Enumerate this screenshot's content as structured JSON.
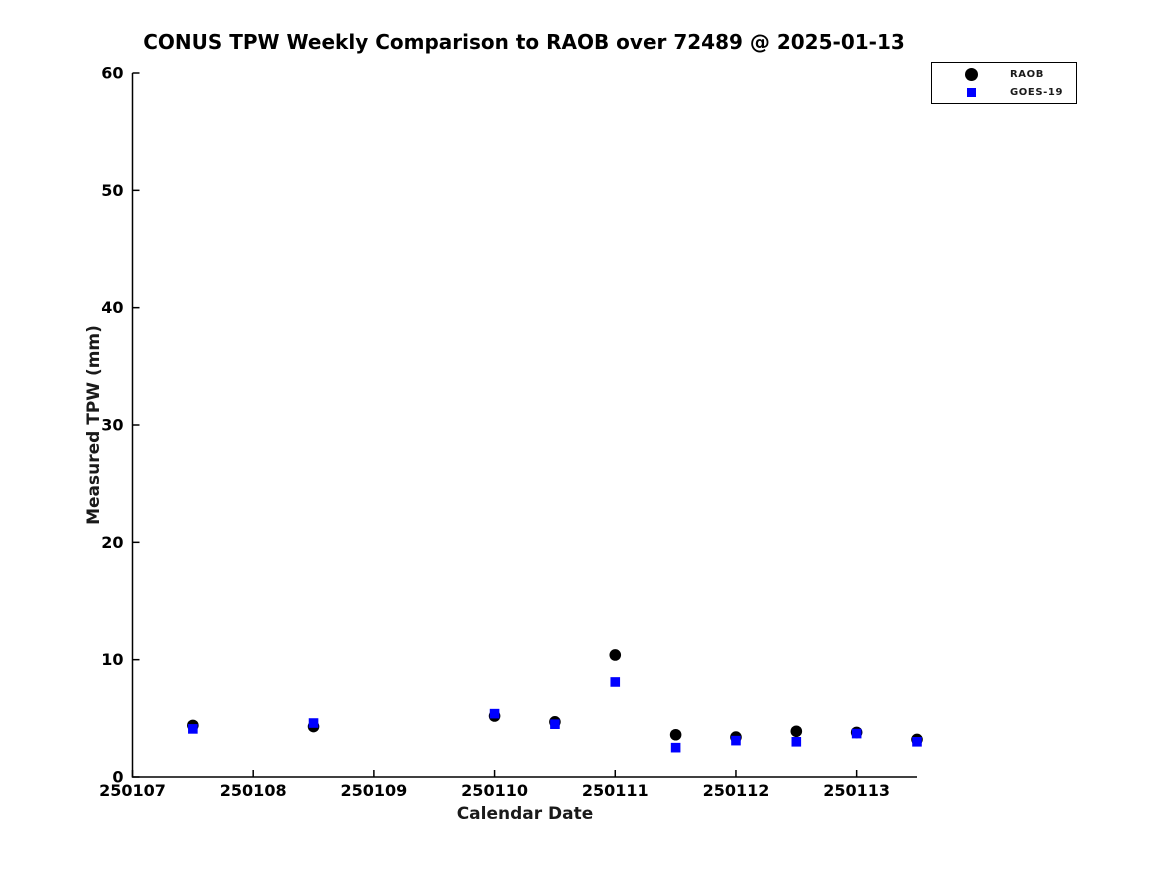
{
  "title": "CONUS TPW Weekly Comparison to RAOB over 72489 @ 2025-01-13",
  "colors": {
    "background": "#ffffff",
    "axis": "#000000",
    "raob": "#000000",
    "goes19": "#0000ff"
  },
  "chart_data": {
    "type": "scatter",
    "title": "CONUS TPW Weekly Comparison to RAOB over 72489 @ 2025-01-13",
    "xlabel": "Calendar Date",
    "ylabel": "Measured TPW (mm)",
    "xlim": [
      250107,
      250113.5
    ],
    "ylim": [
      0,
      60
    ],
    "x_ticks": [
      "250107",
      "250108",
      "250109",
      "250110",
      "250111",
      "250112",
      "250113"
    ],
    "x_tick_values": [
      250107,
      250108,
      250109,
      250110,
      250111,
      250112,
      250113
    ],
    "y_ticks": [
      0,
      10,
      20,
      30,
      40,
      50,
      60
    ],
    "grid": false,
    "legend_position": "upper right",
    "x": [
      250107.5,
      250108.5,
      250110.0,
      250110.5,
      250111.0,
      250111.5,
      250112.0,
      250112.5,
      250113.0,
      250113.5
    ],
    "series": [
      {
        "name": "RAOB",
        "marker": "circle",
        "color": "#000000",
        "values": [
          4.4,
          4.3,
          5.2,
          4.7,
          10.4,
          3.6,
          3.4,
          3.9,
          3.8,
          3.2
        ]
      },
      {
        "name": "GOES-19",
        "marker": "square",
        "color": "#0000ff",
        "values": [
          4.1,
          4.6,
          5.4,
          4.5,
          8.1,
          2.5,
          3.1,
          3.0,
          3.7,
          3.0
        ]
      }
    ]
  }
}
